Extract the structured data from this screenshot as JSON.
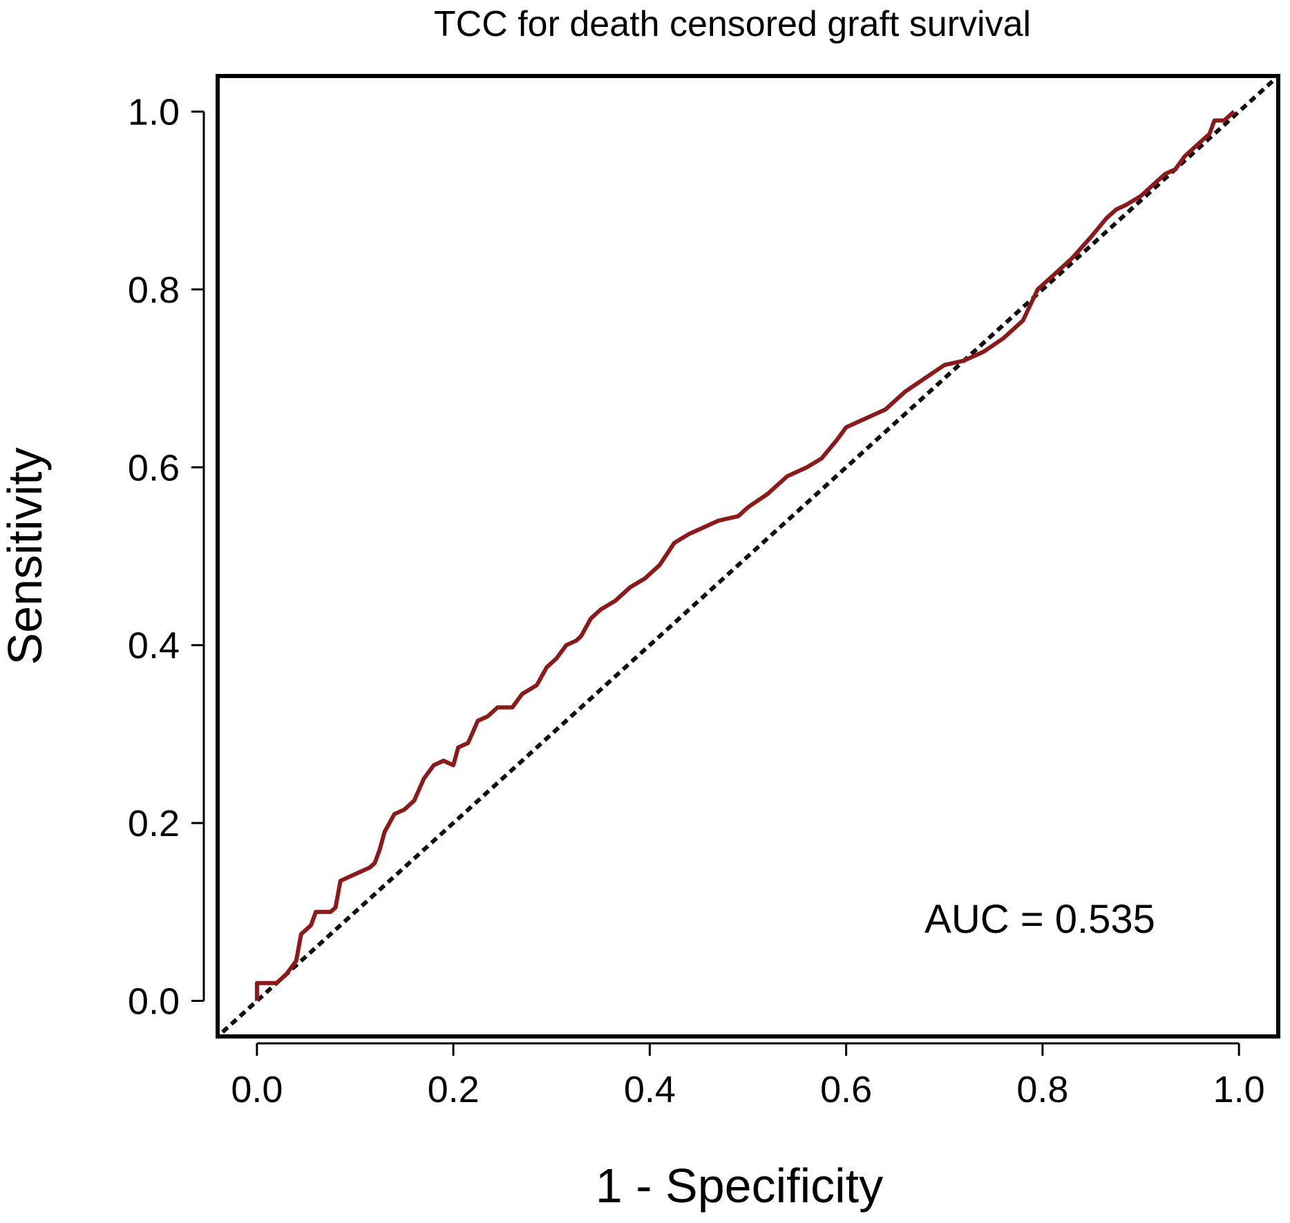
{
  "chart_data": {
    "type": "line",
    "title": "TCC for death censored  graft survival",
    "xlabel": "1 - Specificity",
    "ylabel": "Sensitivity",
    "xlim": [
      -0.04,
      1.04
    ],
    "ylim": [
      -0.04,
      1.04
    ],
    "xticks": [
      "0.0",
      "0.2",
      "0.4",
      "0.6",
      "0.8",
      "1.0"
    ],
    "yticks": [
      "0.0",
      "0.2",
      "0.4",
      "0.6",
      "0.8",
      "1.0"
    ],
    "grid": false,
    "annotation": "AUC = 0.535",
    "colors": {
      "roc": "#8b1a1a",
      "reference": "#111111",
      "frame": "#000000"
    },
    "series": [
      {
        "name": "ROC",
        "x": [
          0.0,
          0.0,
          0.02,
          0.03,
          0.04,
          0.045,
          0.05,
          0.055,
          0.06,
          0.075,
          0.08,
          0.085,
          0.095,
          0.105,
          0.115,
          0.12,
          0.125,
          0.13,
          0.135,
          0.14,
          0.15,
          0.16,
          0.17,
          0.18,
          0.19,
          0.2,
          0.205,
          0.215,
          0.225,
          0.235,
          0.245,
          0.26,
          0.27,
          0.285,
          0.295,
          0.305,
          0.315,
          0.325,
          0.33,
          0.34,
          0.35,
          0.365,
          0.38,
          0.395,
          0.41,
          0.425,
          0.44,
          0.45,
          0.47,
          0.49,
          0.5,
          0.52,
          0.54,
          0.56,
          0.575,
          0.59,
          0.6,
          0.62,
          0.64,
          0.66,
          0.68,
          0.7,
          0.72,
          0.74,
          0.76,
          0.78,
          0.795,
          0.81,
          0.83,
          0.85,
          0.865,
          0.875,
          0.885,
          0.9,
          0.915,
          0.925,
          0.935,
          0.945,
          0.96,
          0.97,
          0.975,
          0.985,
          0.995
        ],
        "y": [
          0.0,
          0.02,
          0.02,
          0.03,
          0.045,
          0.075,
          0.08,
          0.085,
          0.1,
          0.1,
          0.105,
          0.135,
          0.14,
          0.145,
          0.15,
          0.155,
          0.17,
          0.19,
          0.2,
          0.21,
          0.215,
          0.225,
          0.25,
          0.265,
          0.27,
          0.265,
          0.285,
          0.29,
          0.315,
          0.32,
          0.33,
          0.33,
          0.345,
          0.355,
          0.375,
          0.385,
          0.4,
          0.405,
          0.41,
          0.43,
          0.44,
          0.45,
          0.465,
          0.475,
          0.49,
          0.515,
          0.525,
          0.53,
          0.54,
          0.545,
          0.555,
          0.57,
          0.59,
          0.6,
          0.61,
          0.63,
          0.645,
          0.655,
          0.665,
          0.685,
          0.7,
          0.715,
          0.72,
          0.73,
          0.745,
          0.765,
          0.8,
          0.815,
          0.835,
          0.86,
          0.88,
          0.89,
          0.895,
          0.905,
          0.92,
          0.93,
          0.935,
          0.95,
          0.965,
          0.975,
          0.99,
          0.99,
          1.0
        ]
      },
      {
        "name": "Reference",
        "x": [
          -0.035,
          1.04
        ],
        "y": [
          -0.035,
          1.04
        ]
      }
    ]
  }
}
